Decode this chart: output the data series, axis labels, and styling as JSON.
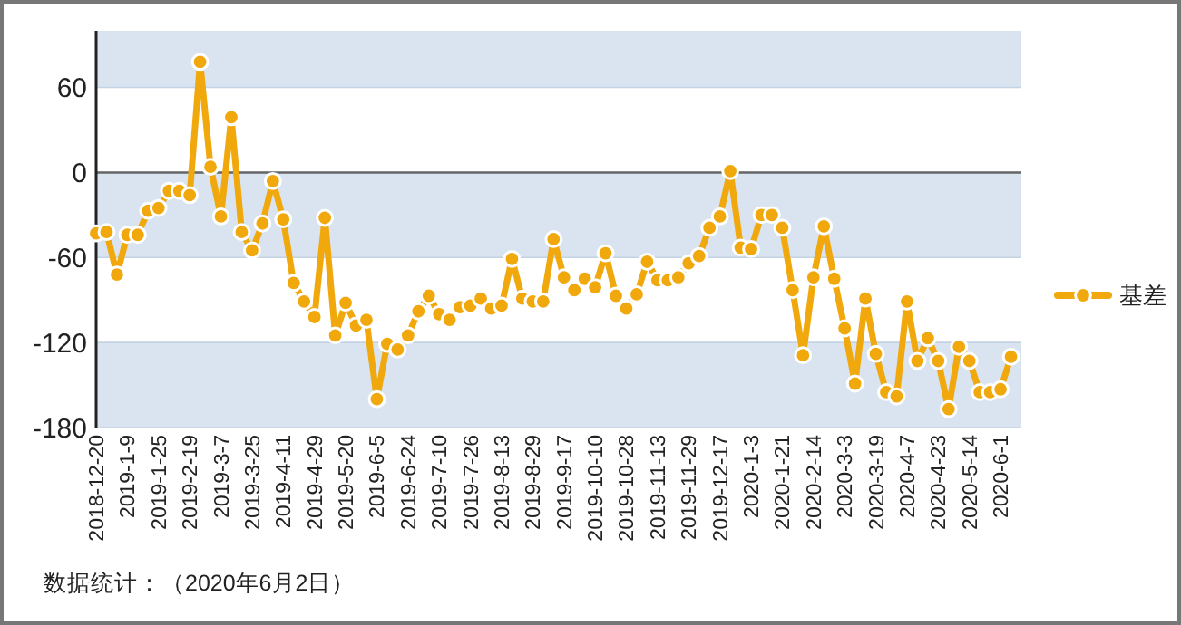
{
  "chart_data": {
    "type": "line",
    "categories": [
      "2018-12-20",
      null,
      null,
      "2019-1-9",
      null,
      null,
      "2019-1-25",
      null,
      null,
      "2019-2-19",
      null,
      null,
      "2019-3-7",
      null,
      null,
      "2019-3-25",
      null,
      null,
      "2019-4-11",
      null,
      null,
      "2019-4-29",
      null,
      null,
      "2019-5-20",
      null,
      null,
      "2019-6-5",
      null,
      null,
      "2019-6-24",
      null,
      null,
      "2019-7-10",
      null,
      null,
      "2019-7-26",
      null,
      null,
      "2019-8-13",
      null,
      null,
      "2019-8-29",
      null,
      null,
      "2019-9-17",
      null,
      null,
      "2019-10-10",
      null,
      null,
      "2019-10-28",
      null,
      null,
      "2019-11-13",
      null,
      null,
      "2019-11-29",
      null,
      null,
      "2019-12-17",
      null,
      null,
      "2020-1-3",
      null,
      null,
      "2020-1-21",
      null,
      null,
      "2020-2-14",
      null,
      null,
      "2020-3-3",
      null,
      null,
      "2020-3-19",
      null,
      null,
      "2020-4-7",
      null,
      null,
      "2020-4-23",
      null,
      null,
      "2020-5-14",
      null,
      null,
      "2020-6-1",
      null
    ],
    "series": [
      {
        "name": "基差",
        "color": "#f0a80c",
        "values": [
          -43,
          -42,
          -72,
          -44,
          -44,
          -27,
          -25,
          -13,
          -13,
          -16,
          78,
          4,
          -31,
          39,
          -42,
          -55,
          -36,
          -6,
          -33,
          -78,
          -91,
          -102,
          -32,
          -115,
          -92,
          -108,
          -104,
          -160,
          -121,
          -125,
          -115,
          -98,
          -87,
          -100,
          -104,
          -95,
          -94,
          -89,
          -96,
          -94,
          -61,
          -89,
          -91,
          -91,
          -47,
          -74,
          -83,
          -75,
          -81,
          -57,
          -87,
          -96,
          -86,
          -63,
          -76,
          -76,
          -74,
          -64,
          -59,
          -39,
          -31,
          1,
          -53,
          -54,
          -30,
          -30,
          -39,
          -83,
          -129,
          -74,
          -38,
          -75,
          -110,
          -149,
          -89,
          -128,
          -155,
          -158,
          -91,
          -133,
          -117,
          -133,
          -167,
          -123,
          -133,
          -155,
          -155,
          -153,
          -130
        ]
      }
    ],
    "ylim": [
      -180,
      100
    ],
    "yticks": [
      -180,
      -120,
      -60,
      0,
      60
    ],
    "grid": true,
    "legend": "right",
    "marker": "circle",
    "line_style": "solid",
    "ref_lines": [
      {
        "axis": "y",
        "value": 0,
        "color": "#666666"
      }
    ],
    "annotations": [
      "数据统计：（2020年6月2日）"
    ]
  }
}
